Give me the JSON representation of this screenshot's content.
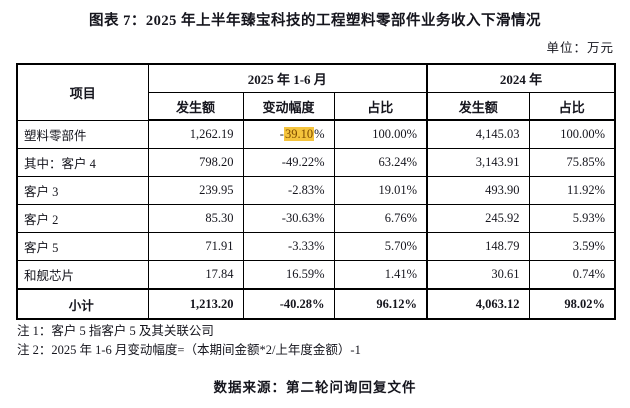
{
  "title": "图表 7：2025 年上半年臻宝科技的工程塑料零部件业务收入下滑情况",
  "unit_label": "单位：万元",
  "colors": {
    "highlight_bg": "#F5C43C",
    "highlight_text": "#7C4A00",
    "text": "#15151d",
    "border": "#000000"
  },
  "table": {
    "col_item": "项目",
    "group_2025": "2025 年 1-6 月",
    "group_2024": "2024 年",
    "sub_headers": [
      "发生额",
      "变动幅度",
      "占比",
      "发生额",
      "占比"
    ],
    "rows": [
      {
        "item": "塑料零部件",
        "amount2025": "1,262.19",
        "change_pre": "-",
        "change_hl": "39.10",
        "change_post": "%",
        "share2025": "100.00%",
        "amount2024": "4,145.03",
        "share2024": "100.00%"
      },
      {
        "item": "其中：客户 4",
        "amount2025": "798.20",
        "change": "-49.22%",
        "share2025": "63.24%",
        "amount2024": "3,143.91",
        "share2024": "75.85%"
      },
      {
        "item": "客户 3",
        "amount2025": "239.95",
        "change": "-2.83%",
        "share2025": "19.01%",
        "amount2024": "493.90",
        "share2024": "11.92%"
      },
      {
        "item": "客户 2",
        "amount2025": "85.30",
        "change": "-30.63%",
        "share2025": "6.76%",
        "amount2024": "245.92",
        "share2024": "5.93%"
      },
      {
        "item": "客户 5",
        "amount2025": "71.91",
        "change": "-3.33%",
        "share2025": "5.70%",
        "amount2024": "148.79",
        "share2024": "3.59%"
      },
      {
        "item": "和舰芯片",
        "amount2025": "17.84",
        "change": "16.59%",
        "share2025": "1.41%",
        "amount2024": "30.61",
        "share2024": "0.74%"
      },
      {
        "item": "小计",
        "subtotal": true,
        "amount2025": "1,213.20",
        "change": "-40.28%",
        "share2025": "96.12%",
        "amount2024": "4,063.12",
        "share2024": "98.02%"
      }
    ]
  },
  "notes": [
    "注 1：客户 5 指客户 5 及其关联公司",
    "注 2：2025 年 1-6 月变动幅度=（本期间金额*2/上年度金额）-1"
  ],
  "source": "数据来源：第二轮问询回复文件"
}
